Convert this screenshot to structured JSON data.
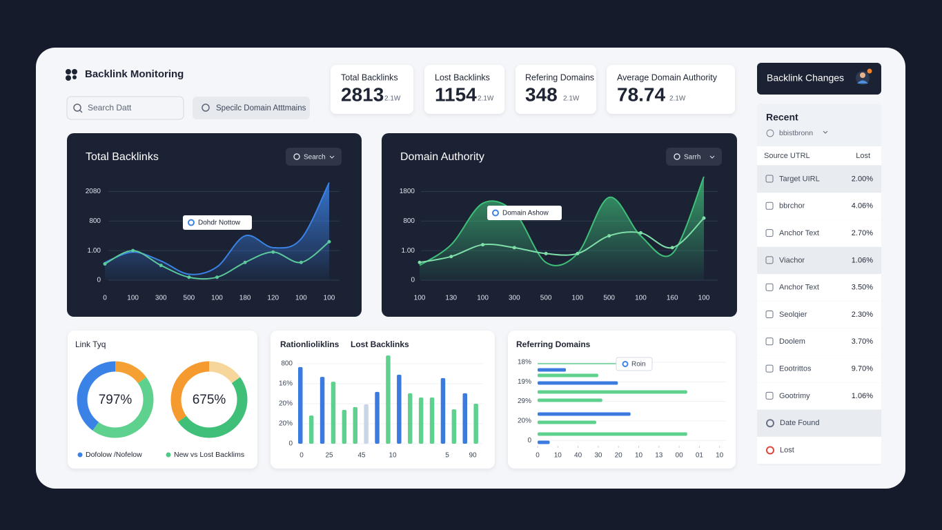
{
  "header": {
    "title": "Backlink Monitoring",
    "search_placeholder": "Search Datt",
    "filter_button": "Specilc Domain Atttmains"
  },
  "stats": [
    {
      "label": "Total Backlinks",
      "value": "2813",
      "delta": "2.1W"
    },
    {
      "label": "Lost Backlinks",
      "value": "1154",
      "delta": "2.1W"
    },
    {
      "label": "Refering Domains",
      "value": "348",
      "delta": "2.1W"
    },
    {
      "label": "Average Domain Authority",
      "value": "78.74",
      "delta": "2.1W"
    }
  ],
  "line_charts": [
    {
      "type": "area",
      "title": "Total Backlinks",
      "button": "Search",
      "annotation": "Dohdr Nottow",
      "categories": [
        "0",
        "100",
        "300",
        "500",
        "100",
        "180",
        "120",
        "100",
        "100"
      ],
      "ylim": [
        0,
        3.5
      ],
      "yticks": [
        0,
        {
          "value": 1,
          "label": "1.00"
        },
        {
          "value": 2,
          "label": "800"
        },
        {
          "value": 3,
          "label": "2080"
        }
      ],
      "series": [
        {
          "color": "#3b82e6",
          "fill": true,
          "values": [
            0.6,
            0.95,
            0.65,
            0.2,
            0.45,
            1.5,
            1.1,
            1.4,
            3.3
          ]
        },
        {
          "color": "#5cc99a",
          "fill": false,
          "values": [
            0.55,
            1.0,
            0.5,
            0.1,
            0.1,
            0.6,
            0.95,
            0.6,
            1.3
          ]
        }
      ]
    },
    {
      "type": "area",
      "title": "Domain Authority",
      "button": "Sarrh",
      "annotation": "Domain Ashow",
      "categories": [
        "100",
        "130",
        "100",
        "300",
        "500",
        "100",
        "500",
        "100",
        "160",
        "100"
      ],
      "ylim": [
        0,
        3.5
      ],
      "yticks": [
        0,
        {
          "value": 1,
          "label": "1.00"
        },
        {
          "value": 2,
          "label": "800"
        },
        {
          "value": 3,
          "label": "1800"
        }
      ],
      "series": [
        {
          "color": "#3fbf78",
          "fill": true,
          "values": [
            0.5,
            1.2,
            2.6,
            2.3,
            0.6,
            0.9,
            2.8,
            1.5,
            0.9,
            3.5
          ]
        },
        {
          "color": "#7ee0a8",
          "fill": false,
          "values": [
            0.6,
            0.8,
            1.2,
            1.1,
            0.9,
            0.9,
            1.5,
            1.6,
            1.1,
            2.1
          ]
        }
      ]
    }
  ],
  "link_type": {
    "title": "Link Tyq",
    "donuts": [
      {
        "type": "donut",
        "center_label": "797%",
        "legend": "Dofolow /Nofelow",
        "legend_color": "#3b82e6",
        "segments": [
          {
            "color": "#f5a033",
            "value": 15
          },
          {
            "color": "#5fd18f",
            "value": 45
          },
          {
            "color": "#3b82e6",
            "value": 40
          }
        ]
      },
      {
        "type": "donut",
        "center_label": "675%",
        "legend": "New vs Lost Backlims",
        "legend_color": "#4fc98a",
        "segments": [
          {
            "color": "#f6d69a",
            "value": 15
          },
          {
            "color": "#3fbf78",
            "value": 50
          },
          {
            "color": "#f59a2e",
            "value": 35
          }
        ]
      }
    ]
  },
  "bar_chart": {
    "type": "bar",
    "titles": [
      "Rationlioliklins",
      "Lost Backlinks"
    ],
    "ylim": [
      0,
      4.6
    ],
    "yticks": [
      0,
      {
        "value": 1,
        "label": "20%"
      },
      {
        "value": 2,
        "label": "20%"
      },
      {
        "value": 3,
        "label": "16%"
      },
      {
        "value": 4,
        "label": "800"
      }
    ],
    "xlabels": [
      "0",
      "25",
      "45",
      "10",
      "5",
      "90"
    ],
    "values": [
      3.83,
      1.41,
      3.34,
      3.1,
      1.69,
      1.83,
      1.97,
      2.59,
      4.41,
      3.45,
      2.52,
      2.31,
      2.31,
      3.28,
      1.72,
      2.52,
      2.0
    ],
    "colors": [
      "#3b7be0",
      "#5fd18f",
      "#3b7be0",
      "#5fd18f",
      "#5fd18f",
      "#5fd18f",
      "#c9d6ea",
      "#3b7be0",
      "#5fd18f",
      "#3b7be0",
      "#5fd18f",
      "#5fd18f",
      "#5fd18f",
      "#3b7be0",
      "#5fd18f",
      "#3b7be0",
      "#5fd18f"
    ]
  },
  "referring_domains": {
    "type": "hbar",
    "title": "Referring Domains",
    "legend": "Roin",
    "row_labels": [
      "18%",
      "19%",
      "29%",
      "20%",
      "0"
    ],
    "xlim": [
      0,
      9
    ],
    "xticks": [
      0,
      {
        "value": 1,
        "label": "10"
      },
      {
        "value": 2,
        "label": "40"
      },
      {
        "value": 3,
        "label": "30"
      },
      {
        "value": 4,
        "label": "20"
      },
      {
        "value": 5,
        "label": "10"
      },
      {
        "value": 6,
        "label": "13"
      },
      {
        "value": 7,
        "label": "00"
      },
      {
        "value": 8,
        "label": "01"
      },
      {
        "value": 9,
        "label": "10"
      }
    ],
    "values": [
      1.4,
      3.0,
      3.97,
      7.4,
      3.2,
      4.6,
      2.9,
      7.4,
      0.6
    ],
    "colors": [
      "#3b7be0",
      "#5fd18f",
      "#3b7be0",
      "#5fd18f",
      "#5fd18f",
      "#3b7be0",
      "#5fd18f",
      "#5fd18f",
      "#3b7be0"
    ]
  },
  "changes_panel": {
    "title": "Backlink Changes",
    "section": "Recent",
    "filter": "bbistbronn",
    "columns": [
      "Source UTRL",
      "Lost"
    ],
    "rows": [
      {
        "label": "Target UIRL",
        "value": "2.00%"
      },
      {
        "label": "bbrchor",
        "value": "4.06%"
      },
      {
        "label": "Anchor Text",
        "value": "2.70%"
      },
      {
        "label": "Viachor",
        "value": "1.06%"
      },
      {
        "label": "Anchor Text",
        "value": "3.50%"
      },
      {
        "label": "Seolqier",
        "value": "2.30%"
      },
      {
        "label": "Doolem",
        "value": "3.70%"
      },
      {
        "label": "Eootrittos",
        "value": "9.70%"
      },
      {
        "label": "Gootrimy",
        "value": "1.06%"
      }
    ],
    "footer_rows": [
      "Date Found",
      "Lost"
    ]
  }
}
